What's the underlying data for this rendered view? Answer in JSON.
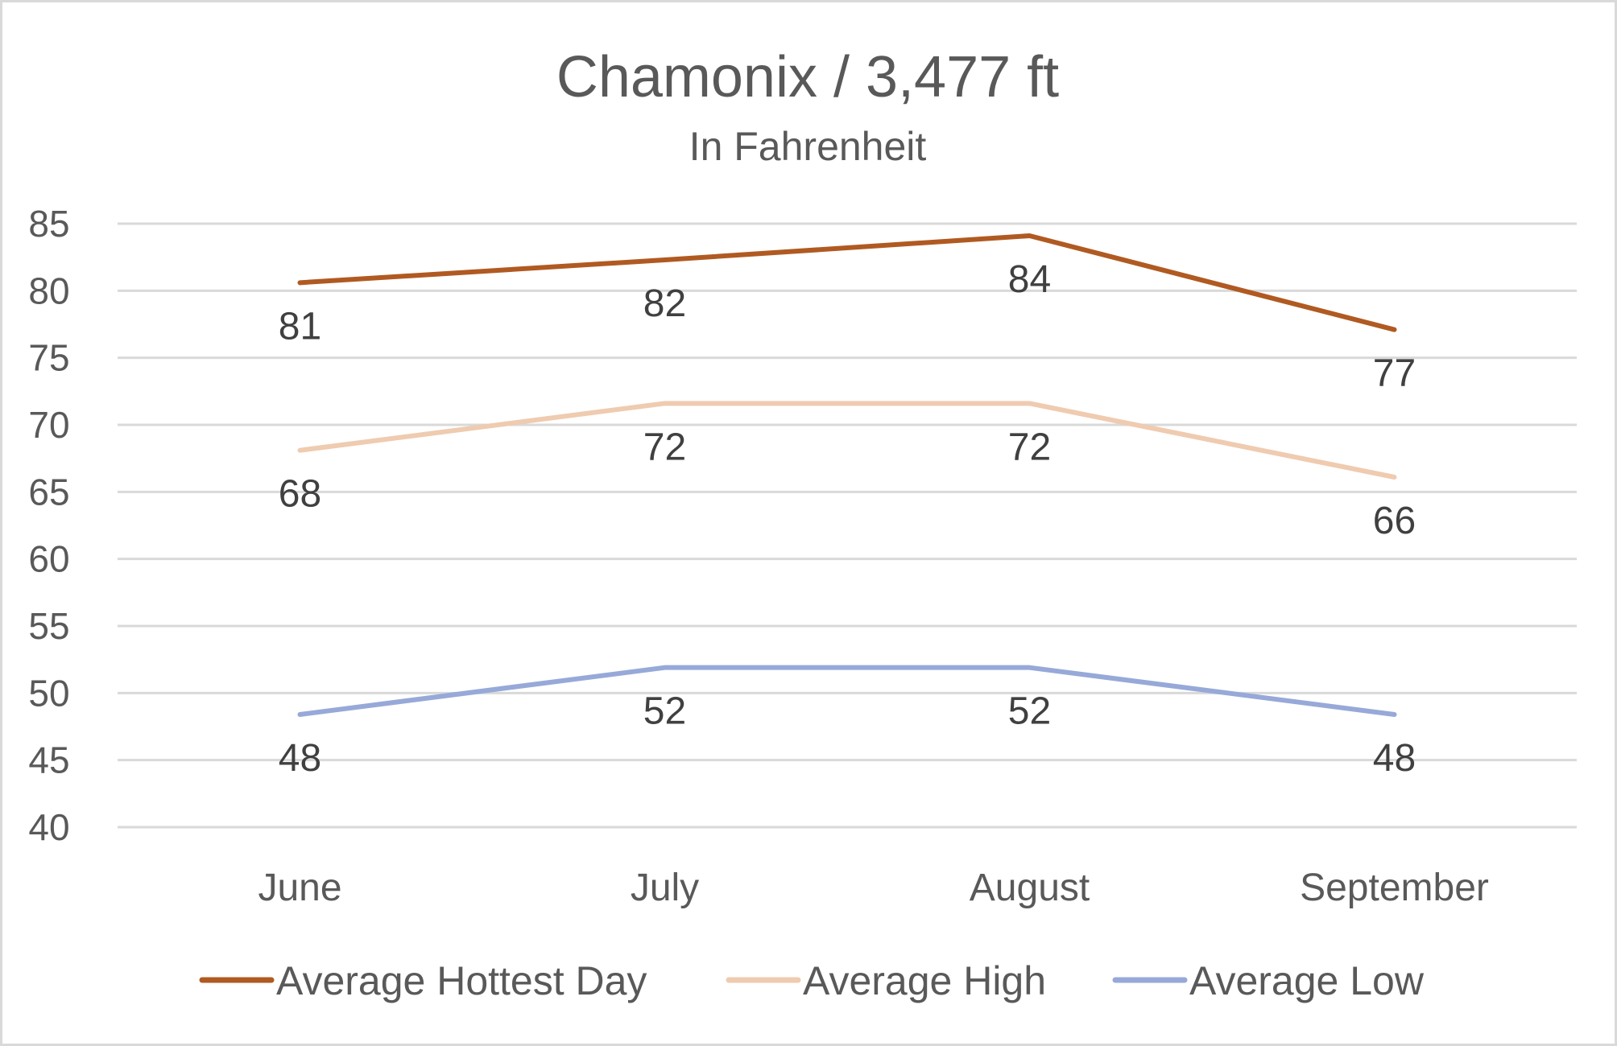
{
  "chart_data": {
    "type": "line",
    "title": "Chamonix / 3,477 ft",
    "subtitle": "In Fahrenheit",
    "categories": [
      "June",
      "July",
      "August",
      "September"
    ],
    "ylim": [
      40,
      85
    ],
    "ytick_step": 5,
    "grid": true,
    "legend_position": "bottom",
    "series": [
      {
        "name": "Average Hottest Day",
        "color": "#b05a22",
        "values": [
          80.6,
          82.3,
          84.1,
          77.1
        ],
        "labels": [
          "81",
          "82",
          "84",
          "77"
        ]
      },
      {
        "name": "Average High",
        "color": "#efcbb0",
        "values": [
          68.1,
          71.6,
          71.6,
          66.1
        ],
        "labels": [
          "68",
          "72",
          "72",
          "66"
        ]
      },
      {
        "name": "Average Low",
        "color": "#97a9d8",
        "values": [
          48.4,
          51.9,
          51.9,
          48.4
        ],
        "labels": [
          "48",
          "52",
          "52",
          "48"
        ]
      }
    ]
  }
}
